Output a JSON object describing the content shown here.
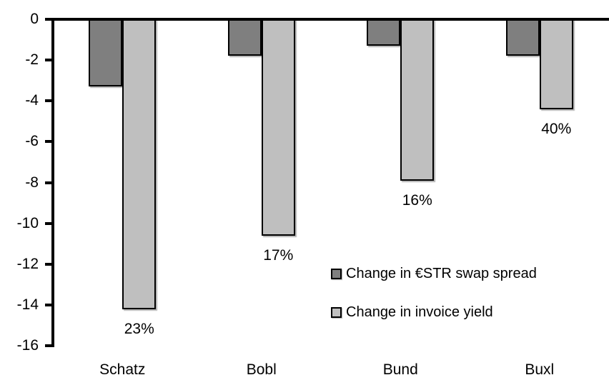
{
  "chart_data": {
    "type": "bar",
    "title": "",
    "xlabel": "",
    "ylabel": "",
    "categories": [
      "Schatz",
      "Bobl",
      "Bund",
      "Buxl"
    ],
    "series": [
      {
        "name": "Change in €STR swap spread",
        "color": "#7f7f7f",
        "values": [
          -3.3,
          -1.8,
          -1.3,
          -1.8
        ]
      },
      {
        "name": "Change in invoice yield",
        "color": "#bfbfbf",
        "values": [
          -14.2,
          -10.6,
          -7.9,
          -4.4
        ],
        "point_labels": [
          "23%",
          "17%",
          "16%",
          "40%"
        ]
      }
    ],
    "ylim": [
      -16,
      0
    ],
    "yticks": [
      0,
      -2,
      -4,
      -6,
      -8,
      -10,
      -12,
      -14,
      -16
    ],
    "grid": false,
    "legend_position": "inside-right",
    "bar_border_color": "#000000",
    "axis_color": "#000000",
    "background_color": "#ffffff"
  }
}
